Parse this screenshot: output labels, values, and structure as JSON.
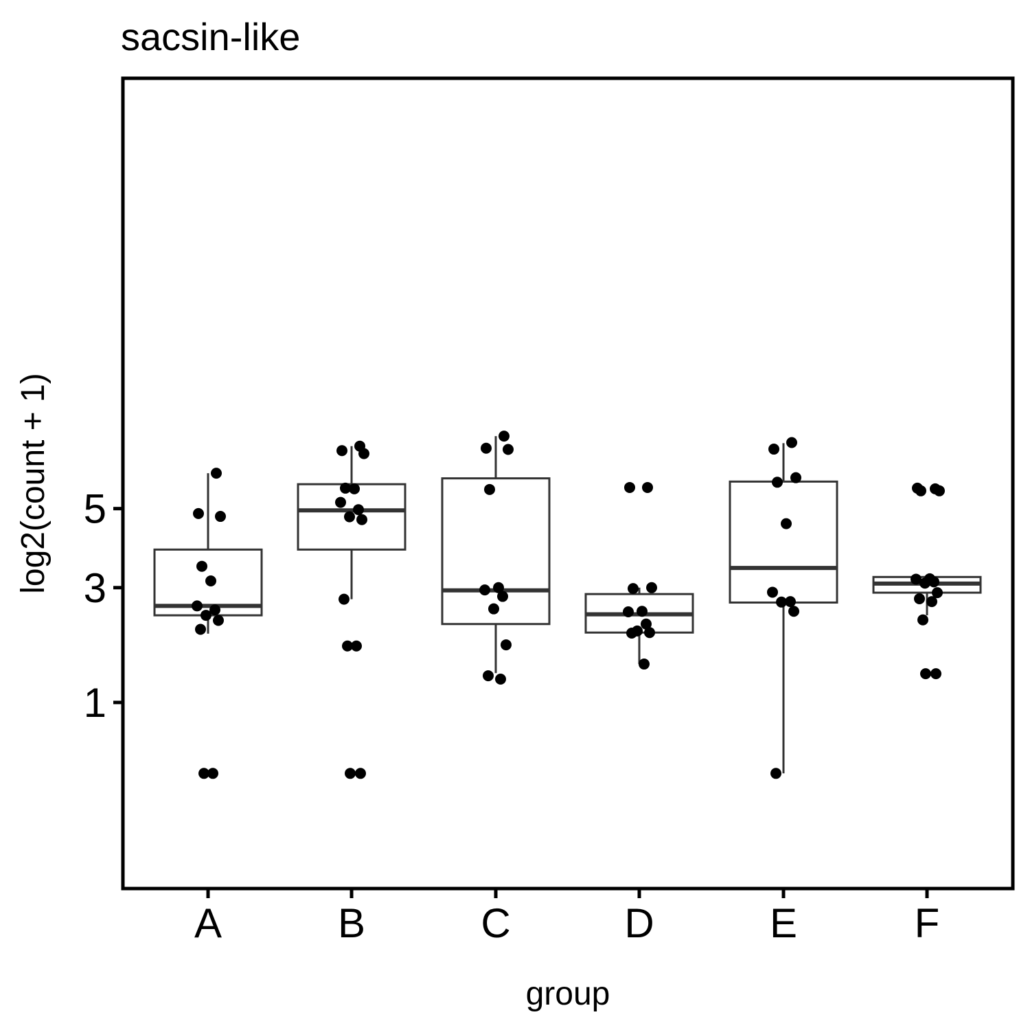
{
  "chart_data": {
    "type": "box",
    "title": "sacsin-like",
    "xlabel": "group",
    "ylabel": "log2(count + 1)",
    "categories": [
      "A",
      "B",
      "C",
      "D",
      "E",
      "F"
    ],
    "y_ticks": [
      1,
      3,
      5
    ],
    "ylim": [
      0.3,
      7.2
    ],
    "y_scale": "sqrt",
    "grid": false,
    "legend": "none",
    "boxes": [
      {
        "group": "A",
        "whisker_low": 2.07,
        "q1": 2.42,
        "median": 2.61,
        "q3": 3.9,
        "whisker_high": 6.06
      },
      {
        "group": "B",
        "whisker_low": 2.75,
        "q1": 3.9,
        "median": 4.95,
        "q3": 5.72,
        "whisker_high": 6.94
      },
      {
        "group": "C",
        "whisker_low": 1.41,
        "q1": 2.25,
        "median": 2.94,
        "q3": 5.9,
        "whisker_high": 7.28
      },
      {
        "group": "D",
        "whisker_low": 1.55,
        "q1": 2.09,
        "median": 2.44,
        "q3": 2.86,
        "whisker_high": 3.0
      },
      {
        "group": "E",
        "whisker_low": 0.3,
        "q1": 2.68,
        "median": 3.45,
        "q3": 5.8,
        "whisker_high": 7.04
      },
      {
        "group": "F",
        "whisker_low": 2.42,
        "q1": 2.89,
        "median": 3.09,
        "q3": 3.24,
        "whisker_high": 3.24
      }
    ],
    "points": [
      {
        "group": "A",
        "values": [
          6.06,
          4.86,
          4.78,
          3.49,
          3.15,
          2.61,
          2.53,
          2.42,
          2.32,
          2.15,
          0.3,
          0.3
        ]
      },
      {
        "group": "B",
        "values": [
          6.94,
          6.79,
          6.69,
          5.6,
          5.58,
          5.18,
          4.97,
          4.77,
          4.69,
          2.75,
          1.85,
          1.85,
          0.3,
          0.3
        ]
      },
      {
        "group": "C",
        "values": [
          7.28,
          6.87,
          6.83,
          5.56,
          3.0,
          2.95,
          2.81,
          2.55,
          1.87,
          1.37,
          1.32
        ]
      },
      {
        "group": "D",
        "values": [
          5.62,
          5.62,
          3.0,
          2.98,
          2.5,
          2.49,
          2.25,
          2.12,
          2.09,
          2.08,
          1.55
        ]
      },
      {
        "group": "E",
        "values": [
          7.06,
          6.84,
          5.92,
          5.78,
          4.58,
          2.9,
          2.7,
          2.69,
          2.5,
          0.3
        ]
      },
      {
        "group": "F",
        "values": [
          5.58,
          5.6,
          5.52,
          5.52,
          3.2,
          3.19,
          3.13,
          3.1,
          2.89,
          2.76,
          2.7,
          2.33,
          1.4,
          1.4
        ]
      }
    ]
  }
}
